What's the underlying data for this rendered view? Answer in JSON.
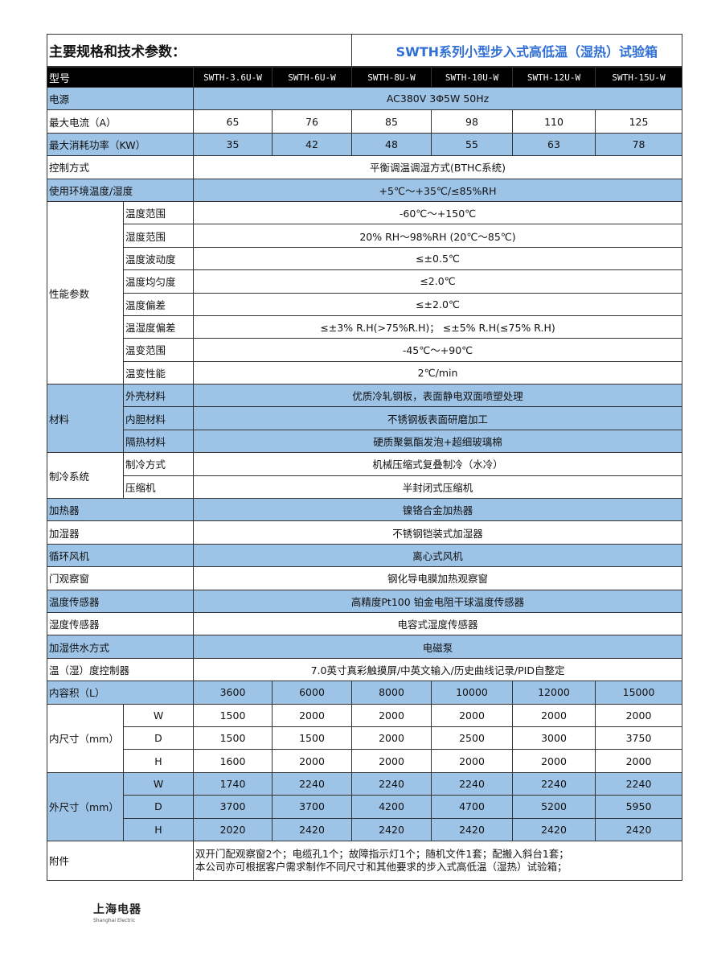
{
  "title": {
    "left": "主要规格和技术参数：",
    "right": "SWTH系列小型步入式高低温（湿热）试验箱"
  },
  "header": {
    "label": "型号",
    "models": [
      "SWTH-3.6U-W",
      "SWTH-6U-W",
      "SWTH-8U-W",
      "SWTH-10U-W",
      "SWTH-12U-W",
      "SWTH-15U-W"
    ]
  },
  "rows": [
    {
      "label": "电源",
      "value": "AC380V    3Φ5W 50Hz",
      "blue": true
    },
    {
      "label": "最大电流（A）",
      "values": [
        "65",
        "76",
        "85",
        "98",
        "110",
        "125"
      ],
      "blue": false
    },
    {
      "label": "最大消耗功率（KW）",
      "values": [
        "35",
        "42",
        "48",
        "55",
        "63",
        "78"
      ],
      "blue": true
    },
    {
      "label": "控制方式",
      "value": "平衡调温调湿方式(BTHC系统)",
      "blue": false
    },
    {
      "label": "使用环境温度/湿度",
      "value": "+5℃～+35℃/≤85%RH",
      "blue": true
    },
    {
      "group": "性能参数",
      "blue": false,
      "items": [
        {
          "label": "温度范围",
          "value": "-60℃～+150℃"
        },
        {
          "label": "湿度范围",
          "value": "20% RH～98%RH (20℃～85℃)"
        },
        {
          "label": "温度波动度",
          "value": "≤±0.5℃"
        },
        {
          "label": "温度均匀度",
          "value": "≤2.0℃"
        },
        {
          "label": "温度偏差",
          "value": "≤±2.0℃"
        },
        {
          "label": "温湿度偏差",
          "value": "≤±3% R.H(>75%R.H)；  ≤±5% R.H(≤75% R.H)"
        },
        {
          "label": "温变范围",
          "value": "-45℃～+90℃"
        },
        {
          "label": "温变性能",
          "value": "2℃/min"
        }
      ]
    },
    {
      "group": "材料",
      "blue": true,
      "items": [
        {
          "label": "外壳材料",
          "value": "优质冷轧钢板，表面静电双面喷塑处理"
        },
        {
          "label": "内胆材料",
          "value": "不锈钢板表面研磨加工"
        },
        {
          "label": "隔热材料",
          "value": "硬质聚氨酯发泡+超细玻璃棉"
        }
      ]
    },
    {
      "group": "制冷系统",
      "blue": false,
      "items": [
        {
          "label": "制冷方式",
          "value": "机械压缩式复叠制冷（水冷）"
        },
        {
          "label": "压缩机",
          "value": "半封闭式压缩机"
        }
      ]
    },
    {
      "label": "加热器",
      "value": "镍铬合金加热器",
      "blue": true
    },
    {
      "label": "加湿器",
      "value": "不锈钢铠装式加湿器",
      "blue": false
    },
    {
      "label": "循环风机",
      "value": "离心式风机",
      "blue": true
    },
    {
      "label": "门观察窗",
      "value": "钢化导电膜加热观察窗",
      "blue": false
    },
    {
      "label": "温度传感器",
      "value": "高精度Pt100 铂金电阻干球温度传感器",
      "blue": true
    },
    {
      "label": "湿度传感器",
      "value": "电容式湿度传感器",
      "blue": false
    },
    {
      "label": "加湿供水方式",
      "value": "电磁泵",
      "blue": true
    },
    {
      "label": "温（湿）度控制器",
      "value": "7.0英寸真彩触摸屏/中英文输入/历史曲线记录/PID自整定",
      "blue": false
    },
    {
      "label": "内容积（L）",
      "values": [
        "3600",
        "6000",
        "8000",
        "10000",
        "12000",
        "15000"
      ],
      "blue": true
    },
    {
      "group": "内尺寸（mm）",
      "blue": false,
      "items": [
        {
          "label": "W",
          "values": [
            "1500",
            "2000",
            "2000",
            "2000",
            "2000",
            "2000"
          ]
        },
        {
          "label": "D",
          "values": [
            "1500",
            "1500",
            "2000",
            "2500",
            "3000",
            "3750"
          ]
        },
        {
          "label": "H",
          "values": [
            "1600",
            "2000",
            "2000",
            "2000",
            "2000",
            "2000"
          ]
        }
      ]
    },
    {
      "group": "外尺寸（mm）",
      "blue": true,
      "items": [
        {
          "label": "W",
          "values": [
            "1740",
            "2240",
            "2240",
            "2240",
            "2240",
            "2240"
          ]
        },
        {
          "label": "D",
          "values": [
            "3700",
            "3700",
            "4200",
            "4700",
            "5200",
            "5950"
          ]
        },
        {
          "label": "H",
          "values": [
            "2020",
            "2420",
            "2420",
            "2420",
            "2420",
            "2420"
          ]
        }
      ]
    }
  ],
  "attachment": {
    "label": "附件",
    "lines": [
      "双开门配观察窗2个；电缆孔1个；故障指示灯1个；随机文件1套；配搬入斜台1套；",
      "本公司亦可根据客户需求制作不同尺寸和其他要求的步入式高低温（湿热）试验箱；"
    ]
  },
  "logo": {
    "cn": "上海电器",
    "en": "Shanghai Electric"
  },
  "colors": {
    "blue_row": "#9dc3e6",
    "header_bg": "#000000",
    "title_accent": "#2f6fd6"
  }
}
